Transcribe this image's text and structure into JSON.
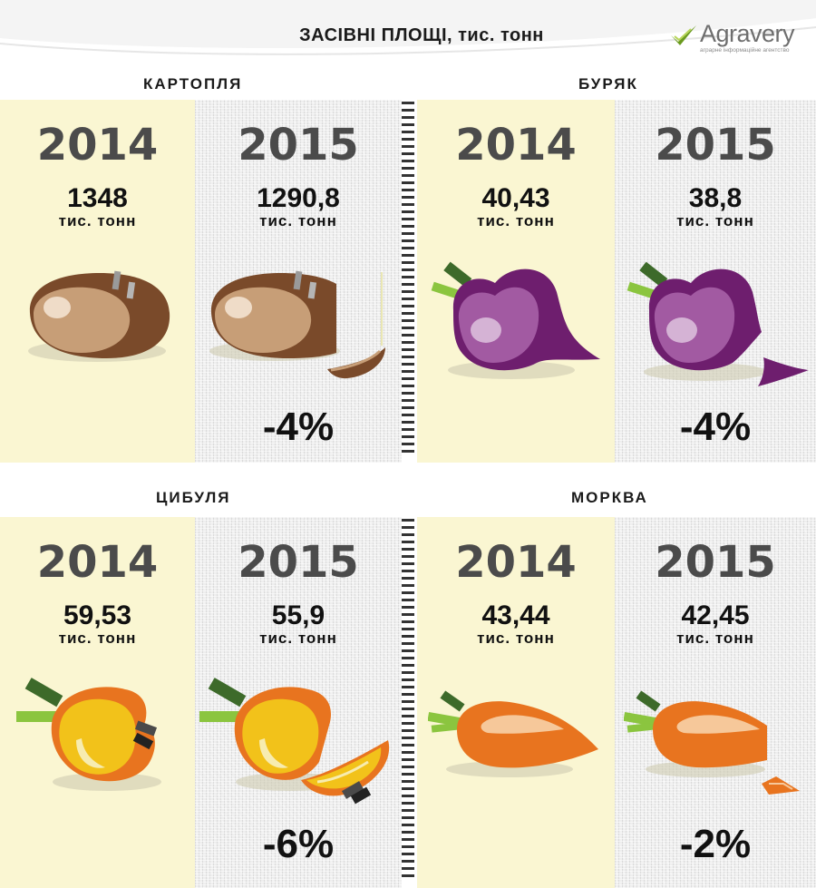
{
  "header": {
    "title": "ЗАСІВНІ ПЛОЩІ, тис. тонн"
  },
  "logo": {
    "name": "Agravery",
    "tagline": "аграрне інформаційне агентство",
    "icon": "checkmark-icon"
  },
  "colors": {
    "year_panel": "#faf6d2",
    "text_dark": "#111111",
    "year_text": "#4b4b4b",
    "potato": "#7a4a2a",
    "beet": "#6e1e6e",
    "onion": "#f2c21a",
    "carrot": "#e8741f"
  },
  "sections": [
    {
      "name": "КАРТОПЛЯ",
      "y2014": {
        "year": "2014",
        "value": "1348",
        "unit": "тис. тонн",
        "icon": "potato-icon"
      },
      "y2015": {
        "year": "2015",
        "value": "1290,8",
        "unit": "тис. тонн",
        "icon": "potato-cut-icon"
      },
      "change": "-4%"
    },
    {
      "name": "БУРЯК",
      "y2014": {
        "year": "2014",
        "value": "40,43",
        "unit": "тис. тонн",
        "icon": "beet-icon"
      },
      "y2015": {
        "year": "2015",
        "value": "38,8",
        "unit": "тис. тонн",
        "icon": "beet-cut-icon"
      },
      "change": "-4%"
    },
    {
      "name": "ЦИБУЛЯ",
      "y2014": {
        "year": "2014",
        "value": "59,53",
        "unit": "тис. тонн",
        "icon": "onion-icon"
      },
      "y2015": {
        "year": "2015",
        "value": "55,9",
        "unit": "тис. тонн",
        "icon": "onion-cut-icon"
      },
      "change": "-6%"
    },
    {
      "name": "МОРКВА",
      "y2014": {
        "year": "2014",
        "value": "43,44",
        "unit": "тис. тонн",
        "icon": "carrot-icon"
      },
      "y2015": {
        "year": "2015",
        "value": "42,45",
        "unit": "тис. тонн",
        "icon": "carrot-cut-icon"
      },
      "change": "-2%"
    }
  ]
}
